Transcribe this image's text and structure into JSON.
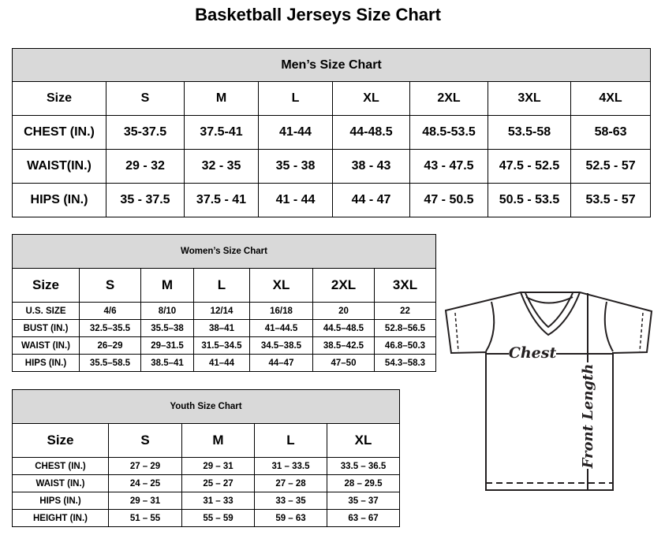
{
  "title": "Basketball Jerseys Size Chart",
  "men": {
    "heading": "Men’s Size Chart",
    "header": [
      "Size",
      "S",
      "M",
      "L",
      "XL",
      "2XL",
      "3XL",
      "4XL"
    ],
    "rows": [
      [
        "CHEST (IN.)",
        "35-37.5",
        "37.5-41",
        "41-44",
        "44-48.5",
        "48.5-53.5",
        "53.5-58",
        "58-63"
      ],
      [
        "WAIST(IN.)",
        "29 - 32",
        "32 - 35",
        "35 - 38",
        "38 - 43",
        "43 - 47.5",
        "47.5 - 52.5",
        "52.5 - 57"
      ],
      [
        "HIPS (IN.)",
        "35 - 37.5",
        "37.5 - 41",
        "41 - 44",
        "44 - 47",
        "47 - 50.5",
        "50.5 - 53.5",
        "53.5 - 57"
      ]
    ]
  },
  "women": {
    "heading": "Women’s Size Chart",
    "header": [
      "Size",
      "S",
      "M",
      "L",
      "XL",
      "2XL",
      "3XL"
    ],
    "rows": [
      [
        "U.S. SIZE",
        "4/6",
        "8/10",
        "12/14",
        "16/18",
        "20",
        "22"
      ],
      [
        "BUST (IN.)",
        "32.5–35.5",
        "35.5–38",
        "38–41",
        "41–44.5",
        "44.5–48.5",
        "52.8–56.5"
      ],
      [
        "WAIST (IN.)",
        "26–29",
        "29–31.5",
        "31.5–34.5",
        "34.5–38.5",
        "38.5–42.5",
        "46.8–50.3"
      ],
      [
        "HIPS (IN.)",
        "35.5–58.5",
        "38.5–41",
        "41–44",
        "44–47",
        "47–50",
        "54.3–58.3"
      ]
    ]
  },
  "youth": {
    "heading": "Youth Size Chart",
    "header": [
      "Size",
      "S",
      "M",
      "L",
      "XL"
    ],
    "rows": [
      [
        "CHEST (IN.)",
        "27 – 29",
        "29 – 31",
        "31 – 33.5",
        "33.5 – 36.5"
      ],
      [
        "WAIST (IN.)",
        "24 – 25",
        "25 – 27",
        "27 – 28",
        "28 – 29.5"
      ],
      [
        "HIPS (IN.)",
        "29 – 31",
        "31 – 33",
        "33 – 35",
        "35 – 37"
      ],
      [
        "HEIGHT (IN.)",
        "51 – 55",
        "55 – 59",
        "59 – 63",
        "63 – 67"
      ]
    ]
  },
  "diagram": {
    "chest_label": "Chest",
    "length_label": "Front Length"
  }
}
